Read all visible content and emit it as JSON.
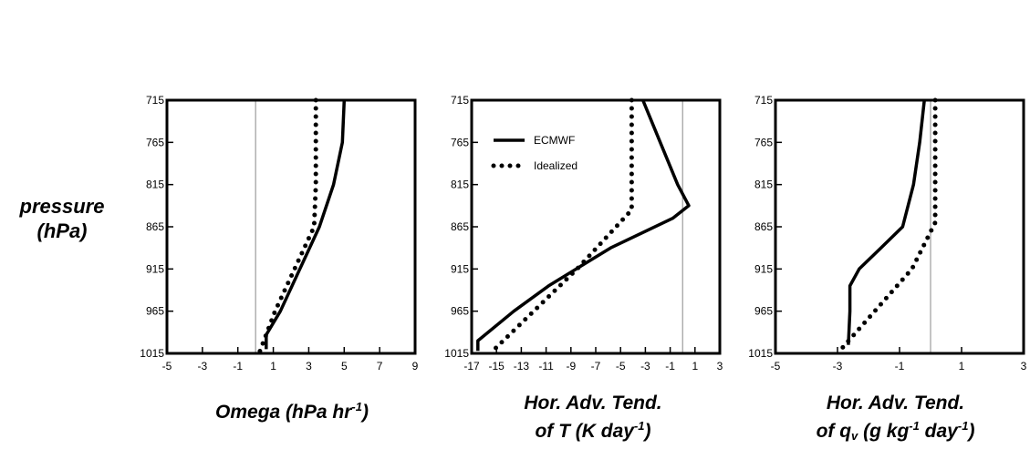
{
  "ylabel": {
    "line1": "pressure",
    "line2": "(hPa)"
  },
  "panels": [
    {
      "xlabel_html": [
        "Omega (hPa hr",
        "<sup>-1</sup>",
        ")"
      ]
    },
    {
      "xlabel_html": [
        "Hor. Adv. Tend.",
        "of T (K day",
        "<sup>-1</sup>",
        ")"
      ]
    },
    {
      "xlabel_html": [
        "Hor. Adv. Tend.",
        "of q",
        "<sub>v</sub>",
        " (g kg",
        "<sup>-1</sup>",
        " day",
        "<sup>-1</sup>",
        ")"
      ]
    }
  ],
  "chart_data": [
    {
      "type": "line",
      "xlabel": "Omega (hPa hr-1)",
      "ylabel": "pressure (hPa)",
      "xlim": [
        -5,
        9
      ],
      "ylim": [
        1015,
        715
      ],
      "xticks": [
        -5,
        -3,
        -1,
        1,
        3,
        5,
        7,
        9
      ],
      "yticks": [
        715,
        765,
        815,
        865,
        915,
        965,
        1015
      ],
      "vline": 0,
      "series": [
        {
          "style": "solid",
          "points": [
            [
              5.0,
              715
            ],
            [
              4.9,
              765
            ],
            [
              4.4,
              815
            ],
            [
              3.6,
              865
            ],
            [
              2.5,
              915
            ],
            [
              1.4,
              965
            ],
            [
              0.6,
              993
            ],
            [
              0.6,
              1010
            ]
          ]
        },
        {
          "style": "dotted",
          "points": [
            [
              3.4,
              715
            ],
            [
              3.4,
              765
            ],
            [
              3.4,
              815
            ],
            [
              3.3,
              865
            ],
            [
              2.2,
              915
            ],
            [
              1.1,
              965
            ],
            [
              0.2,
              1015
            ]
          ]
        }
      ]
    },
    {
      "type": "line",
      "xlabel": "Hor. Adv. Tend. of T (K day-1)",
      "ylabel": "pressure (hPa)",
      "xlim": [
        -17,
        3
      ],
      "ylim": [
        1015,
        715
      ],
      "xticks": [
        -17,
        -15,
        -13,
        -11,
        -9,
        -7,
        -5,
        -3,
        -1,
        1,
        3
      ],
      "yticks": [
        715,
        765,
        815,
        865,
        915,
        965,
        1015
      ],
      "vline": 0,
      "legend": {
        "entries": [
          "ECMWF",
          "Idealized"
        ],
        "position": "top-left"
      },
      "series": [
        {
          "name": "ECMWF",
          "style": "solid",
          "points": [
            [
              -3.2,
              715
            ],
            [
              -1.8,
              765
            ],
            [
              -0.4,
              815
            ],
            [
              0.5,
              840
            ],
            [
              -0.8,
              855
            ],
            [
              -5.8,
              890
            ],
            [
              -10.8,
              935
            ],
            [
              -13.6,
              965
            ],
            [
              -16.5,
              1000
            ],
            [
              -16.5,
              1012
            ]
          ]
        },
        {
          "name": "Idealized",
          "style": "dotted",
          "points": [
            [
              -4.1,
              715
            ],
            [
              -4.1,
              765
            ],
            [
              -4.1,
              815
            ],
            [
              -4.1,
              845
            ],
            [
              -8.5,
              915
            ],
            [
              -12.0,
              965
            ],
            [
              -15.5,
              1015
            ]
          ]
        }
      ]
    },
    {
      "type": "line",
      "xlabel": "Hor. Adv. Tend. of qv (g kg-1 day-1)",
      "ylabel": "pressure (hPa)",
      "xlim": [
        -5,
        3
      ],
      "ylim": [
        1015,
        715
      ],
      "xticks": [
        -5,
        -3,
        -1,
        1,
        3
      ],
      "yticks": [
        715,
        765,
        815,
        865,
        915,
        965,
        1015
      ],
      "vline": 0,
      "series": [
        {
          "style": "solid",
          "points": [
            [
              -0.2,
              715
            ],
            [
              -0.35,
              765
            ],
            [
              -0.55,
              815
            ],
            [
              -0.9,
              865
            ],
            [
              -1.6,
              890
            ],
            [
              -2.3,
              915
            ],
            [
              -2.6,
              935
            ],
            [
              -2.6,
              965
            ],
            [
              -2.65,
              1005
            ]
          ]
        },
        {
          "style": "dotted",
          "points": [
            [
              0.15,
              715
            ],
            [
              0.15,
              765
            ],
            [
              0.15,
              815
            ],
            [
              0.15,
              860
            ],
            [
              -0.6,
              915
            ],
            [
              -1.8,
              965
            ],
            [
              -3.0,
              1015
            ]
          ]
        }
      ]
    }
  ]
}
